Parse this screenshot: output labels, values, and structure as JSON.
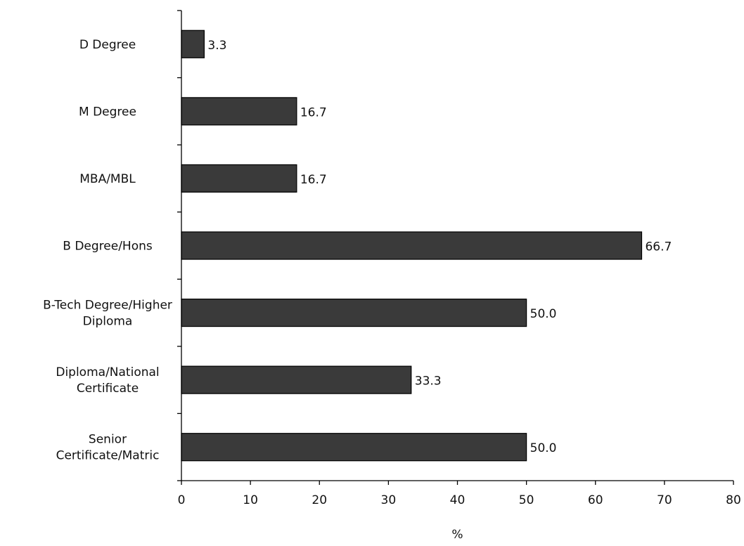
{
  "chart_data": {
    "type": "bar",
    "orientation": "horizontal",
    "categories": [
      "D Degree",
      "M Degree",
      "MBA/MBL",
      "B Degree/Hons",
      "B-Tech Degree/Higher Diploma",
      "Diploma/National Certificate",
      "Senior Certificate/Matric"
    ],
    "category_lines": [
      [
        "D Degree"
      ],
      [
        "M Degree"
      ],
      [
        "MBA/MBL"
      ],
      [
        "B Degree/Hons"
      ],
      [
        "B-Tech Degree/Higher",
        "Diploma"
      ],
      [
        "Diploma/National",
        "Certificate"
      ],
      [
        "Senior",
        "Certificate/Matric"
      ]
    ],
    "values": [
      3.3,
      16.7,
      16.7,
      66.7,
      50.0,
      33.3,
      50.0
    ],
    "data_labels": [
      "3.3",
      "16.7",
      "16.7",
      "66.7",
      "50.0",
      "33.3",
      "50.0"
    ],
    "title": "",
    "xlabel": "%",
    "ylabel": "",
    "xlim": [
      0,
      80
    ],
    "xticks": [
      0,
      10,
      20,
      30,
      40,
      50,
      60,
      70,
      80
    ],
    "grid": false,
    "legend": "none",
    "bar_color": "#3a3a3a",
    "edge_color": "#000000"
  }
}
